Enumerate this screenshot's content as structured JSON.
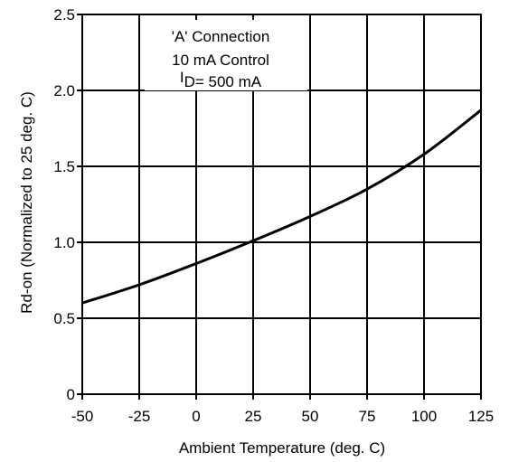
{
  "chart_data": {
    "type": "line",
    "title": "",
    "xlabel": "Ambient Temperature (deg. C)",
    "ylabel": "Rd-on (Normalized to 25 deg. C)",
    "xlim": [
      -50,
      125
    ],
    "ylim": [
      0,
      2.5
    ],
    "x_ticks": [
      "-50",
      "-25",
      "0",
      "25",
      "50",
      "75",
      "100",
      "125"
    ],
    "y_ticks": [
      "0",
      "0.5",
      "1.0",
      "1.5",
      "2.0",
      "2.5"
    ],
    "grid": true,
    "annotation": {
      "line1": "'A' Connection",
      "line2": "10 mA Control",
      "line3_prefix": "I",
      "line3_sub": "D",
      "line3_rest": "= 500 mA"
    },
    "series": [
      {
        "x": [
          -50,
          -25,
          0,
          25,
          50,
          75,
          100,
          125
        ],
        "y": [
          0.6,
          0.72,
          0.86,
          1.01,
          1.17,
          1.35,
          1.58,
          1.87
        ]
      }
    ]
  }
}
